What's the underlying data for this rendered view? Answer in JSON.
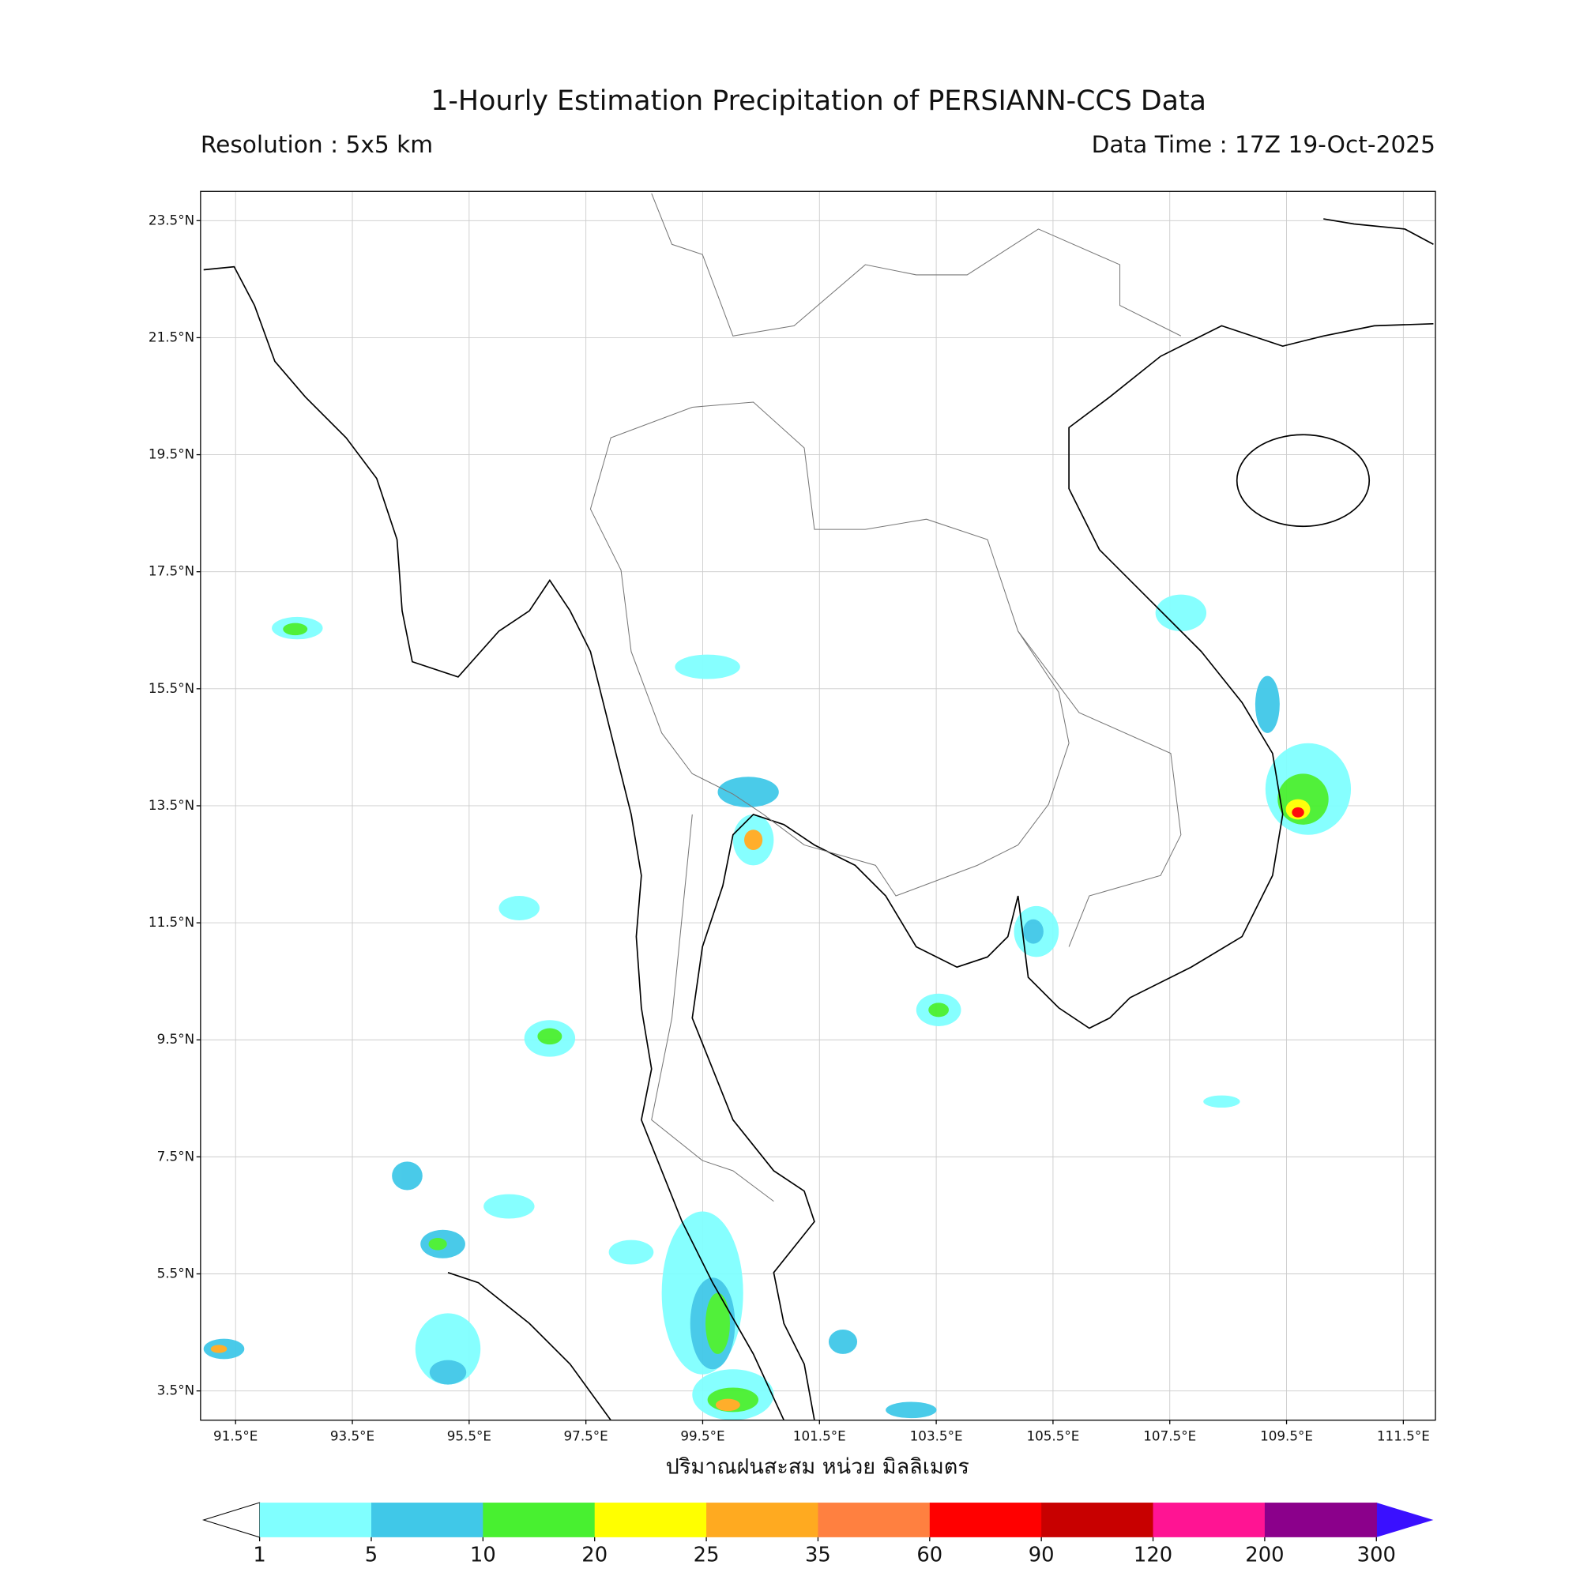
{
  "header": {
    "title": "1-Hourly Estimation Precipitation of PERSIANN-CCS Data",
    "resolution": "Resolution : 5x5 km",
    "data_time": "Data Time : 17Z 19-Oct-2025"
  },
  "axes": {
    "xlim": [
      90.9,
      112.05
    ],
    "ylim": [
      3.0,
      24.0
    ],
    "grid": true,
    "xticks": [
      {
        "value": 91.5,
        "label": "91.5°E"
      },
      {
        "value": 93.5,
        "label": "93.5°E"
      },
      {
        "value": 95.5,
        "label": "95.5°E"
      },
      {
        "value": 97.5,
        "label": "97.5°E"
      },
      {
        "value": 99.5,
        "label": "99.5°E"
      },
      {
        "value": 101.5,
        "label": "101.5°E"
      },
      {
        "value": 103.5,
        "label": "103.5°E"
      },
      {
        "value": 105.5,
        "label": "105.5°E"
      },
      {
        "value": 107.5,
        "label": "107.5°E"
      },
      {
        "value": 109.5,
        "label": "109.5°E"
      },
      {
        "value": 111.5,
        "label": "111.5°E"
      }
    ],
    "yticks": [
      {
        "value": 3.5,
        "label": "3.5°N"
      },
      {
        "value": 5.5,
        "label": "5.5°N"
      },
      {
        "value": 7.5,
        "label": "7.5°N"
      },
      {
        "value": 9.5,
        "label": "9.5°N"
      },
      {
        "value": 11.5,
        "label": "11.5°N"
      },
      {
        "value": 13.5,
        "label": "13.5°N"
      },
      {
        "value": 15.5,
        "label": "15.5°N"
      },
      {
        "value": 17.5,
        "label": "17.5°N"
      },
      {
        "value": 19.5,
        "label": "19.5°N"
      },
      {
        "value": 21.5,
        "label": "21.5°N"
      },
      {
        "value": 23.5,
        "label": "23.5°N"
      }
    ],
    "xlabel": "ปริมาณฝนสะสม หน่วย มิลลิเมตร"
  },
  "colorbar": {
    "levels": [
      1,
      5,
      10,
      20,
      25,
      35,
      60,
      90,
      120,
      200,
      300
    ],
    "colors": [
      "#80ffff",
      "#40c8e8",
      "#48f030",
      "#ffff00",
      "#ffaa20",
      "#ff8040",
      "#ff0000",
      "#c80000",
      "#ff1493",
      "#8b008b"
    ],
    "under_color": "#ffffff",
    "over_color": "#3a10ff"
  }
}
